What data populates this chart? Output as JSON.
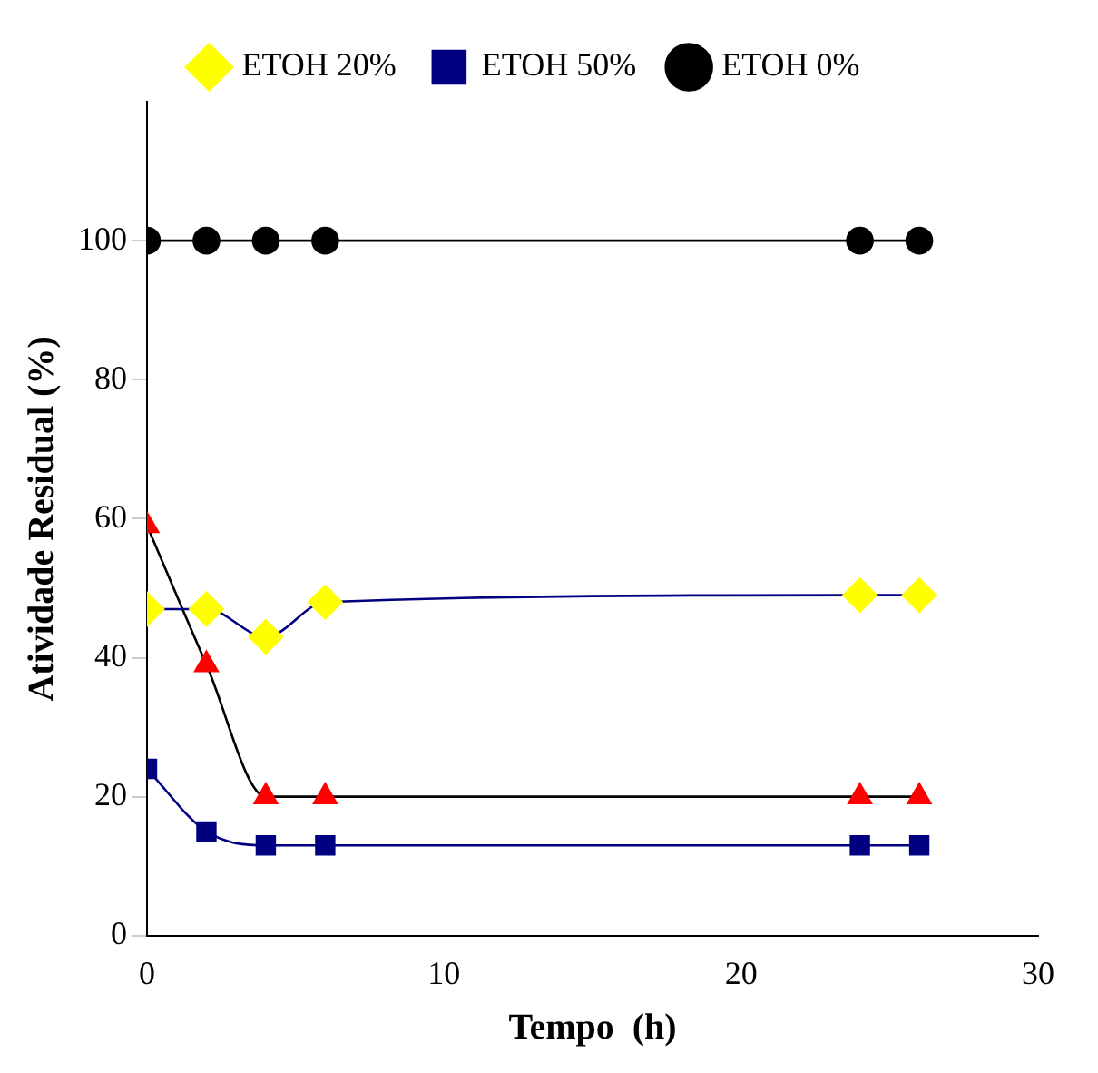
{
  "chart_data": {
    "type": "line",
    "xlabel": "Tempo  (h)",
    "ylabel": "Atividade Residual (%)",
    "x": [
      0,
      2,
      4,
      6,
      24,
      26
    ],
    "xlim": [
      0,
      30
    ],
    "xticks": [
      0,
      10,
      20,
      30
    ],
    "ylim": [
      0,
      120
    ],
    "yticks": [
      0,
      20,
      40,
      60,
      80,
      100
    ],
    "grid": false,
    "legend": "top",
    "series": [
      {
        "name": "ETOH 20%",
        "color": "#000080",
        "colors": [
          "#ffff00",
          "#ffff00",
          "#ffff00",
          "#ffff00",
          "#ffff00",
          "#ffff00"
        ],
        "marker": "diamond",
        "values": [
          47,
          47,
          43,
          48,
          49,
          49
        ]
      },
      {
        "name": "ETOH 50%",
        "color": "#000080",
        "marker": "square",
        "values": [
          24,
          15,
          13,
          13,
          13,
          13
        ]
      },
      {
        "name": "ETOH 0%",
        "color": "#000000",
        "marker": "circle",
        "values": [
          100,
          100,
          100,
          100,
          100,
          100
        ]
      },
      {
        "color": "#000000",
        "colors": [
          "#ff0000",
          "#ff0000",
          "#ff0000",
          "#ff0000",
          "#ff0000",
          "#ff0000"
        ],
        "marker": "triangle",
        "values": [
          59,
          39,
          20,
          20,
          20,
          20
        ]
      }
    ]
  }
}
